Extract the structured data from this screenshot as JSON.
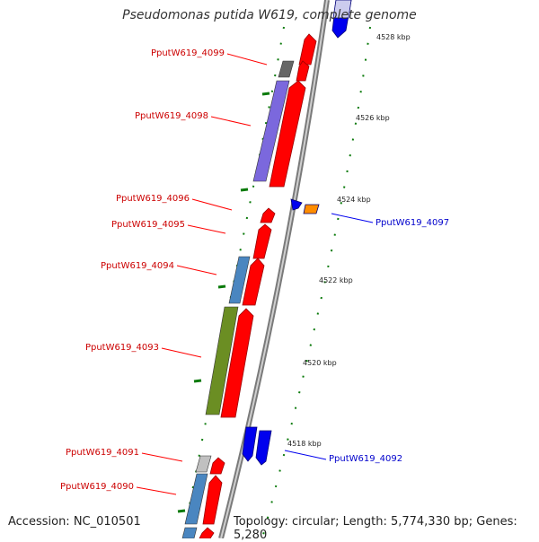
{
  "title": "Pseudomonas putida W619, complete genome",
  "footer": {
    "accession": "Accession: NC_010501",
    "topology": "Topology: circular; Length: 5,774,330 bp; Genes: 5,280"
  },
  "colors": {
    "red": "#ff0000",
    "blue": "#0000ee",
    "label_red": "#cc0000",
    "label_blue": "#0000cc",
    "tick_green": "#006600",
    "backbone": "#888888"
  },
  "kbp_labels": [
    "4528 kbp",
    "4526 kbp",
    "4524 kbp",
    "4522 kbp",
    "4520 kbp",
    "4518 kbp"
  ],
  "gene_labels": [
    "PputW619_4099",
    "PputW619_4098",
    "PputW619_4096",
    "PputW619_4095",
    "PputW619_4094",
    "PputW619_4093",
    "PputW619_4091",
    "PputW619_4090",
    "PputW619_4097",
    "PputW619_4092"
  ]
}
